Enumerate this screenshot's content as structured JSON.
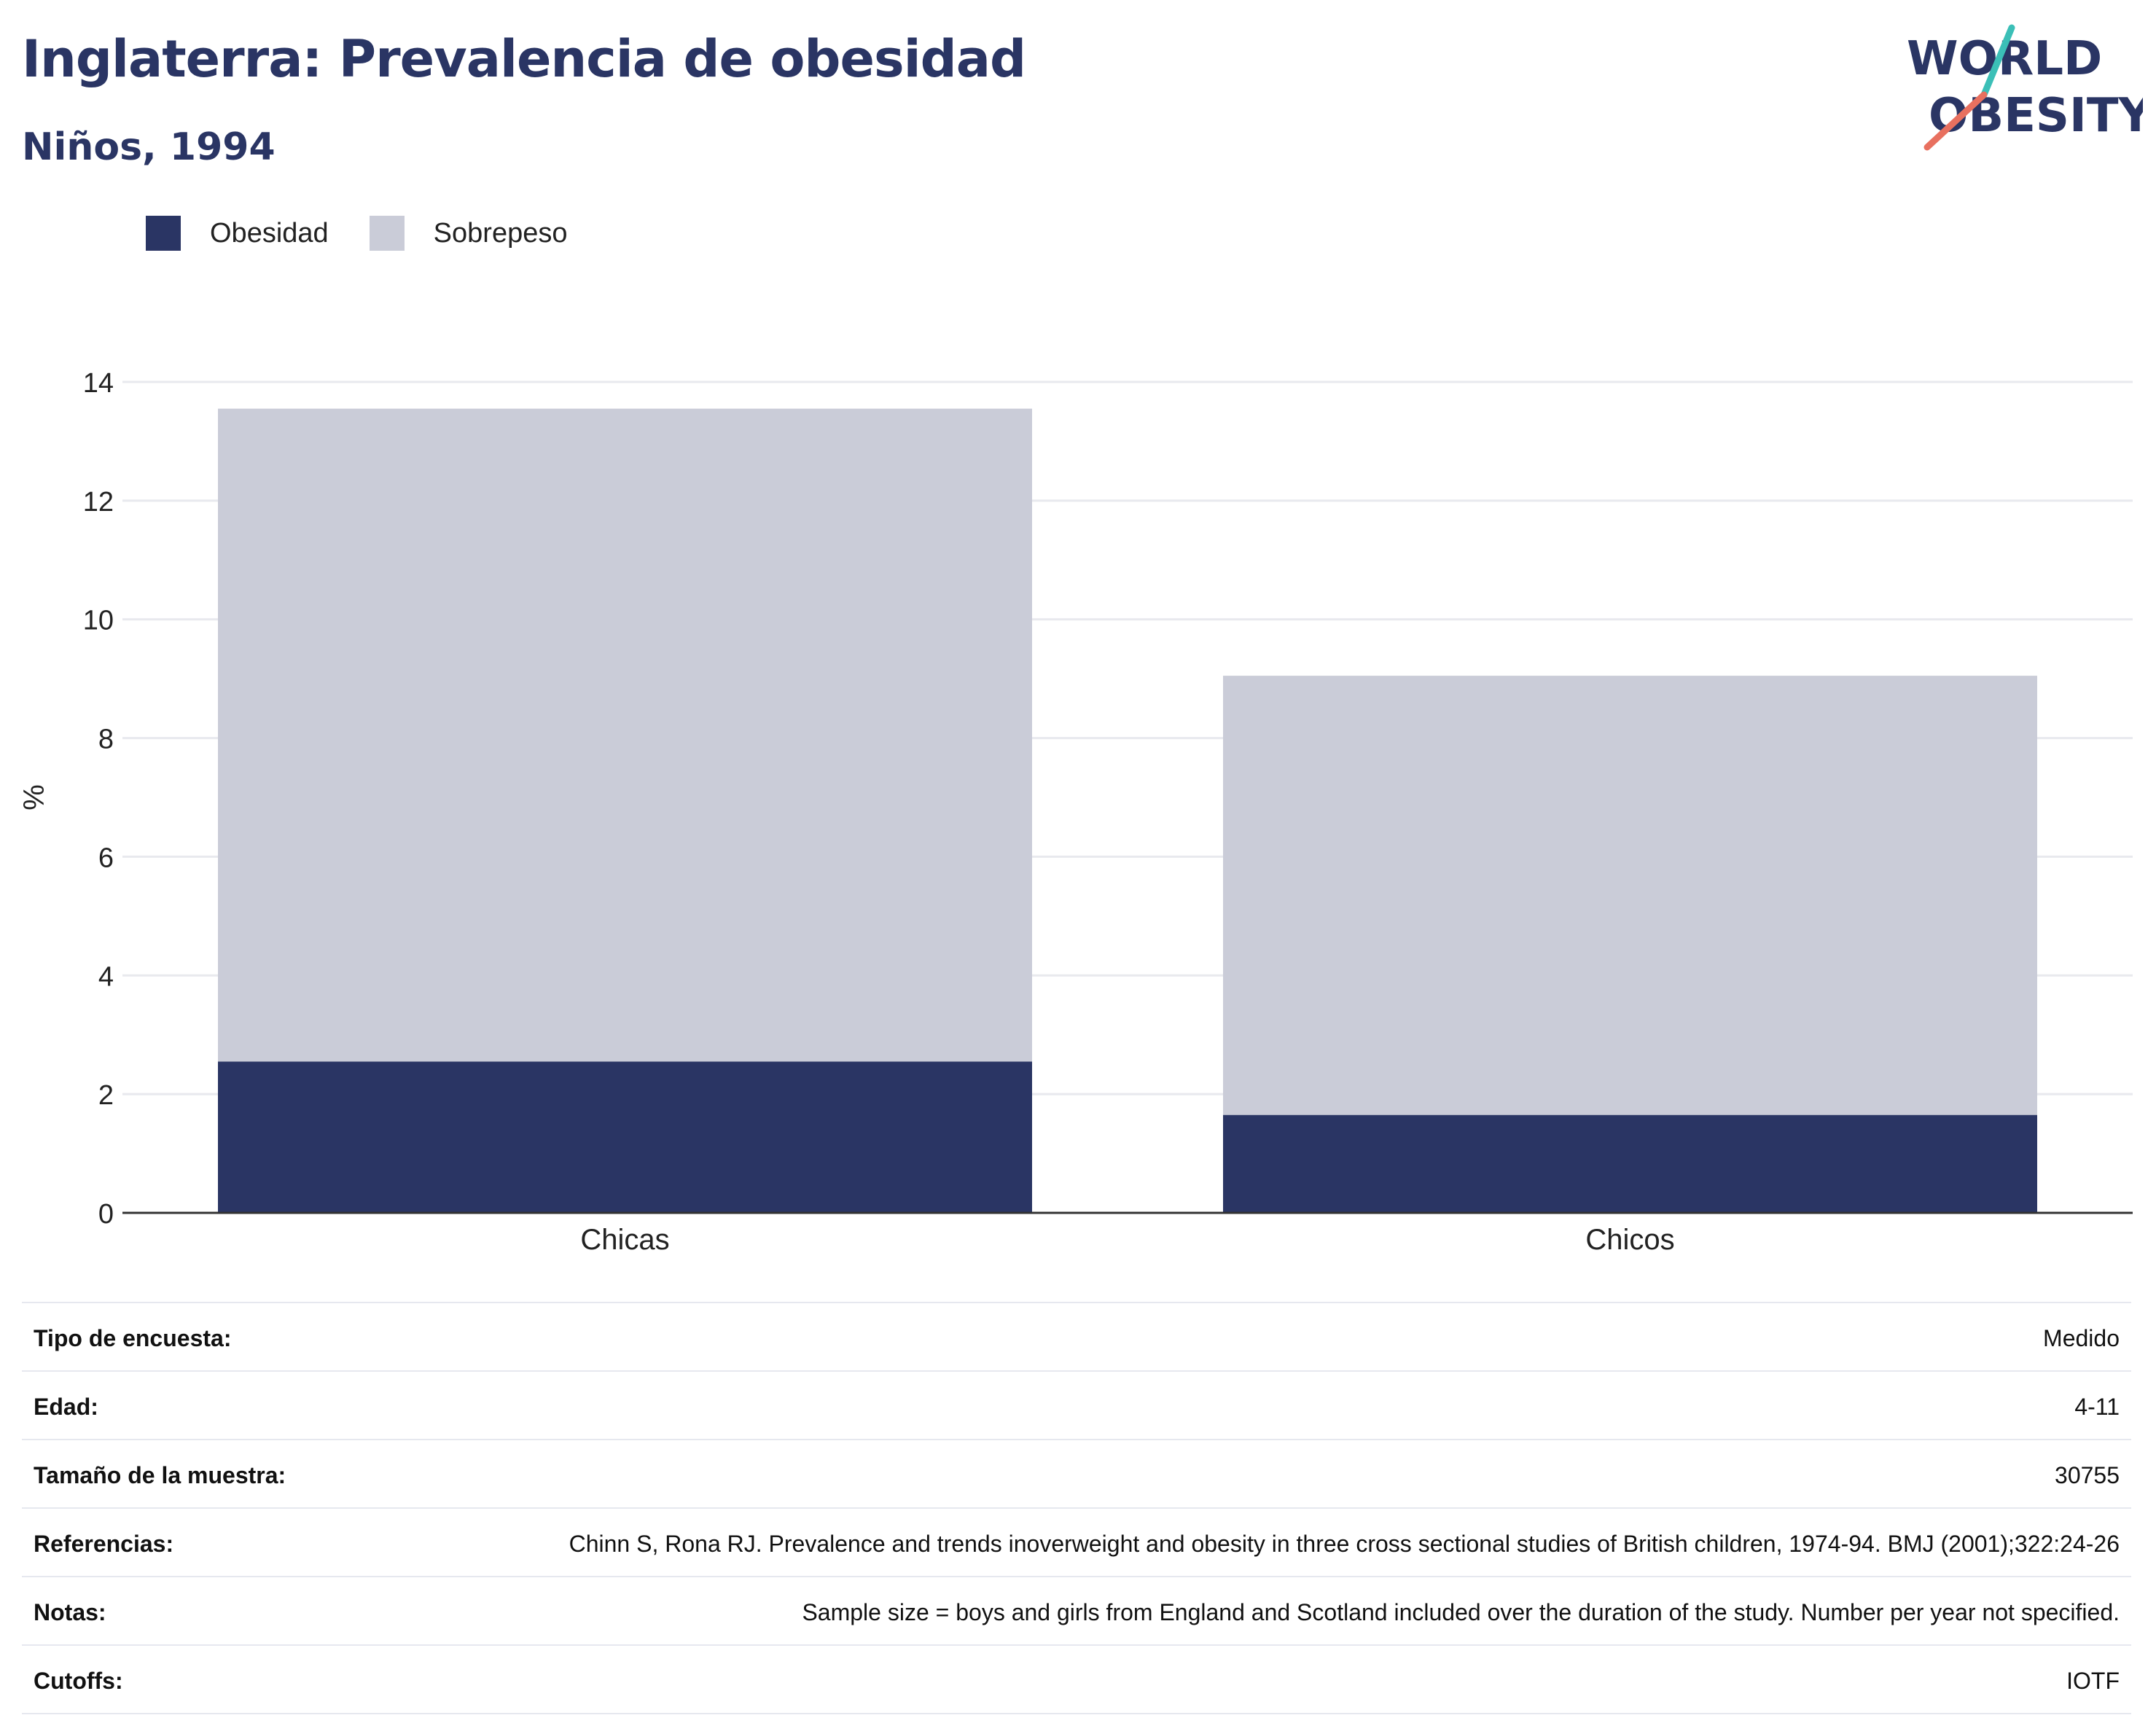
{
  "header": {
    "title": "Inglaterra: Prevalencia de obesidad",
    "subtitle": "Niños, 1994"
  },
  "logo": {
    "line1": "WORLD",
    "line2": "OBESITY"
  },
  "colors": {
    "obesidad": "#2a3564",
    "sobrepeso": "#caccd8",
    "title": "#2a3564",
    "logo_teal": "#3bbfb7",
    "logo_coral": "#e8705f"
  },
  "chart_data": {
    "type": "bar",
    "stacked": true,
    "categories": [
      "Chicas",
      "Chicos"
    ],
    "series": [
      {
        "name": "Obesidad",
        "values": [
          2.55,
          1.65
        ]
      },
      {
        "name": "Sobrepeso",
        "values": [
          11.0,
          7.4
        ]
      }
    ],
    "ylabel": "%",
    "ylim": [
      0,
      14
    ],
    "yticks": [
      0,
      2,
      4,
      6,
      8,
      10,
      12,
      14
    ],
    "grid": true,
    "legend_position": "top-left"
  },
  "info": [
    {
      "label": "Tipo de encuesta:",
      "value": "Medido"
    },
    {
      "label": "Edad:",
      "value": "4-11"
    },
    {
      "label": "Tamaño de la muestra:",
      "value": "30755"
    },
    {
      "label": "Referencias:",
      "value": "Chinn S, Rona RJ. Prevalence and trends inoverweight and obesity in three cross sectional studies of British children, 1974-94. BMJ (2001);322:24-26"
    },
    {
      "label": "Notas:",
      "value": "Sample size = boys and girls from England and Scotland included over the duration of the study. Number per year not specified."
    },
    {
      "label": "Cutoffs:",
      "value": "IOTF"
    }
  ]
}
